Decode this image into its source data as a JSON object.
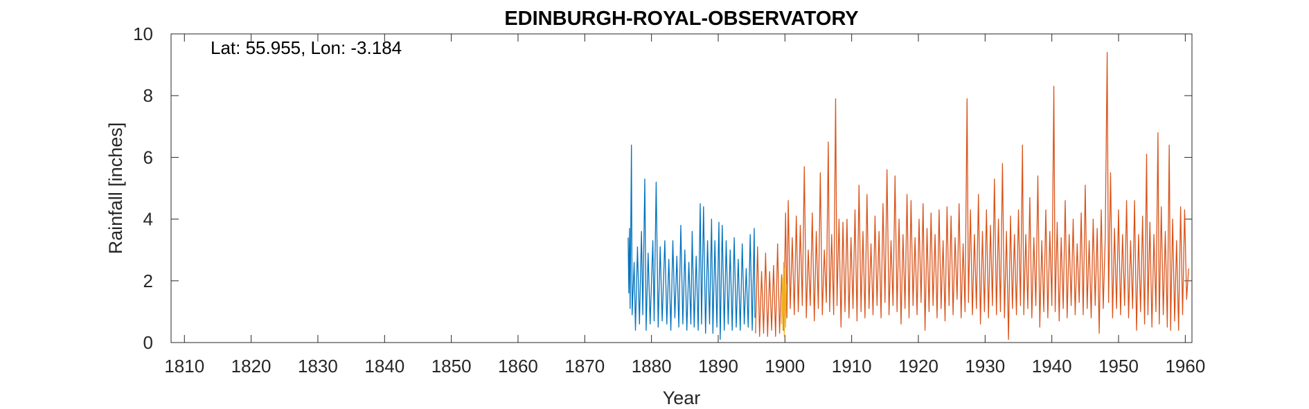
{
  "chart_data": {
    "type": "line",
    "title": "EDINBURGH-ROYAL-OBSERVATORY",
    "xlabel": "Year",
    "ylabel": "Rainfall [inches]",
    "annotation": "Lat: 55.955, Lon: -3.184",
    "xlim": [
      1808,
      1961
    ],
    "ylim": [
      0,
      10
    ],
    "x_ticks": [
      1810,
      1820,
      1830,
      1840,
      1850,
      1860,
      1870,
      1880,
      1890,
      1900,
      1910,
      1920,
      1930,
      1940,
      1950,
      1960
    ],
    "y_ticks": [
      0,
      2,
      4,
      6,
      8,
      10
    ],
    "grid": false,
    "box": true,
    "series": [
      {
        "color": "#0072BD",
        "x_range": [
          1876.5,
          1895.5
        ],
        "points": [
          [
            1876.5,
            3.4
          ],
          [
            1876.6,
            1.6
          ],
          [
            1876.7,
            3.7
          ],
          [
            1876.8,
            1.1
          ],
          [
            1877.0,
            6.4
          ],
          [
            1877.1,
            0.9
          ],
          [
            1877.4,
            2.6
          ],
          [
            1877.6,
            0.4
          ],
          [
            1877.9,
            3.1
          ],
          [
            1878.2,
            0.6
          ],
          [
            1878.5,
            3.6
          ],
          [
            1878.7,
            0.9
          ],
          [
            1879.0,
            5.3
          ],
          [
            1879.2,
            0.4
          ],
          [
            1879.5,
            2.9
          ],
          [
            1879.8,
            0.6
          ],
          [
            1880.2,
            3.3
          ],
          [
            1880.4,
            0.7
          ],
          [
            1880.7,
            5.2
          ],
          [
            1881.0,
            0.5
          ],
          [
            1881.3,
            3.1
          ],
          [
            1881.6,
            0.7
          ],
          [
            1882.0,
            3.3
          ],
          [
            1882.3,
            0.6
          ],
          [
            1882.6,
            2.7
          ],
          [
            1882.9,
            0.4
          ],
          [
            1883.2,
            3.3
          ],
          [
            1883.5,
            0.8
          ],
          [
            1883.8,
            2.8
          ],
          [
            1884.1,
            0.5
          ],
          [
            1884.4,
            3.8
          ],
          [
            1884.7,
            0.6
          ],
          [
            1885.0,
            3.0
          ],
          [
            1885.3,
            0.4
          ],
          [
            1885.6,
            2.6
          ],
          [
            1885.9,
            0.6
          ],
          [
            1886.1,
            3.6
          ],
          [
            1886.4,
            0.5
          ],
          [
            1886.7,
            2.8
          ],
          [
            1887.0,
            0.4
          ],
          [
            1887.3,
            4.5
          ],
          [
            1887.5,
            0.6
          ],
          [
            1887.8,
            4.4
          ],
          [
            1888.1,
            0.3
          ],
          [
            1888.4,
            3.3
          ],
          [
            1888.7,
            0.6
          ],
          [
            1889.0,
            4.0
          ],
          [
            1889.2,
            0.3
          ],
          [
            1889.5,
            3.3
          ],
          [
            1889.8,
            0.5
          ],
          [
            1890.1,
            3.9
          ],
          [
            1890.3,
            0.1
          ],
          [
            1890.6,
            3.8
          ],
          [
            1890.9,
            0.4
          ],
          [
            1891.2,
            3.3
          ],
          [
            1891.5,
            0.6
          ],
          [
            1891.8,
            3.0
          ],
          [
            1892.1,
            0.4
          ],
          [
            1892.4,
            3.4
          ],
          [
            1892.7,
            0.5
          ],
          [
            1893.0,
            2.7
          ],
          [
            1893.3,
            0.4
          ],
          [
            1893.6,
            3.2
          ],
          [
            1893.9,
            0.6
          ],
          [
            1894.2,
            2.4
          ],
          [
            1894.5,
            0.5
          ],
          [
            1894.8,
            3.5
          ],
          [
            1895.1,
            0.4
          ],
          [
            1895.4,
            3.7
          ],
          [
            1895.5,
            0.8
          ]
        ]
      },
      {
        "color": "#D95319",
        "x_range": [
          1895.5,
          1960.5
        ],
        "points": [
          [
            1895.6,
            0.3
          ],
          [
            1895.9,
            3.1
          ],
          [
            1896.2,
            0.2
          ],
          [
            1896.5,
            2.3
          ],
          [
            1896.8,
            0.3
          ],
          [
            1897.1,
            2.9
          ],
          [
            1897.4,
            0.2
          ],
          [
            1897.7,
            2.3
          ],
          [
            1898.0,
            0.4
          ],
          [
            1898.3,
            2.5
          ],
          [
            1898.6,
            0.2
          ],
          [
            1898.9,
            3.2
          ],
          [
            1899.2,
            0.3
          ],
          [
            1899.5,
            2.2
          ],
          [
            1899.8,
            0.4
          ],
          [
            1900.1,
            4.2
          ],
          [
            1900.3,
            0.8
          ],
          [
            1900.5,
            4.6
          ],
          [
            1900.8,
            1.1
          ],
          [
            1901.1,
            3.4
          ],
          [
            1901.4,
            0.9
          ],
          [
            1901.7,
            4.1
          ],
          [
            1902.0,
            1.0
          ],
          [
            1902.3,
            3.8
          ],
          [
            1902.6,
            1.2
          ],
          [
            1902.9,
            5.7
          ],
          [
            1903.2,
            0.8
          ],
          [
            1903.5,
            3.0
          ],
          [
            1903.8,
            1.2
          ],
          [
            1904.1,
            4.2
          ],
          [
            1904.4,
            0.7
          ],
          [
            1904.7,
            3.6
          ],
          [
            1905.0,
            1.1
          ],
          [
            1905.3,
            5.5
          ],
          [
            1905.6,
            0.9
          ],
          [
            1905.9,
            3.0
          ],
          [
            1906.2,
            1.3
          ],
          [
            1906.5,
            6.5
          ],
          [
            1906.7,
            1.0
          ],
          [
            1907.0,
            3.5
          ],
          [
            1907.3,
            0.9
          ],
          [
            1907.6,
            7.9
          ],
          [
            1907.8,
            1.2
          ],
          [
            1908.1,
            4.0
          ],
          [
            1908.4,
            0.5
          ],
          [
            1908.7,
            3.9
          ],
          [
            1909.0,
            1.0
          ],
          [
            1909.3,
            4.0
          ],
          [
            1909.6,
            0.8
          ],
          [
            1909.9,
            3.4
          ],
          [
            1910.2,
            1.1
          ],
          [
            1910.5,
            4.3
          ],
          [
            1910.8,
            0.7
          ],
          [
            1911.1,
            5.1
          ],
          [
            1911.4,
            1.0
          ],
          [
            1911.7,
            3.6
          ],
          [
            1912.0,
            0.8
          ],
          [
            1912.3,
            4.8
          ],
          [
            1912.6,
            1.1
          ],
          [
            1912.9,
            3.2
          ],
          [
            1913.2,
            0.9
          ],
          [
            1913.5,
            4.1
          ],
          [
            1913.8,
            1.2
          ],
          [
            1914.1,
            3.6
          ],
          [
            1914.4,
            0.8
          ],
          [
            1914.7,
            4.5
          ],
          [
            1915.0,
            1.3
          ],
          [
            1915.3,
            5.6
          ],
          [
            1915.6,
            0.9
          ],
          [
            1915.9,
            3.3
          ],
          [
            1916.2,
            1.2
          ],
          [
            1916.5,
            5.4
          ],
          [
            1916.8,
            1.0
          ],
          [
            1917.1,
            4.0
          ],
          [
            1917.4,
            0.6
          ],
          [
            1917.7,
            3.5
          ],
          [
            1918.0,
            1.1
          ],
          [
            1918.3,
            4.8
          ],
          [
            1918.6,
            0.8
          ],
          [
            1918.9,
            4.6
          ],
          [
            1919.2,
            1.2
          ],
          [
            1919.5,
            3.4
          ],
          [
            1919.8,
            0.9
          ],
          [
            1920.1,
            4.0
          ],
          [
            1920.4,
            1.3
          ],
          [
            1920.7,
            4.5
          ],
          [
            1921.0,
            0.4
          ],
          [
            1921.3,
            3.7
          ],
          [
            1921.6,
            1.0
          ],
          [
            1921.9,
            4.2
          ],
          [
            1922.2,
            1.2
          ],
          [
            1922.5,
            3.5
          ],
          [
            1922.8,
            0.8
          ],
          [
            1923.1,
            4.3
          ],
          [
            1923.4,
            1.1
          ],
          [
            1923.7,
            3.3
          ],
          [
            1924.0,
            0.7
          ],
          [
            1924.3,
            4.4
          ],
          [
            1924.6,
            1.2
          ],
          [
            1924.9,
            4.1
          ],
          [
            1925.2,
            0.9
          ],
          [
            1925.5,
            3.4
          ],
          [
            1925.8,
            1.4
          ],
          [
            1926.1,
            4.5
          ],
          [
            1926.4,
            0.8
          ],
          [
            1926.7,
            3.2
          ],
          [
            1927.0,
            1.0
          ],
          [
            1927.3,
            7.9
          ],
          [
            1927.5,
            1.3
          ],
          [
            1927.8,
            4.3
          ],
          [
            1928.1,
            0.9
          ],
          [
            1928.4,
            3.5
          ],
          [
            1928.7,
            1.1
          ],
          [
            1929.0,
            4.8
          ],
          [
            1929.3,
            0.6
          ],
          [
            1929.6,
            3.6
          ],
          [
            1929.9,
            1.0
          ],
          [
            1930.2,
            4.3
          ],
          [
            1930.5,
            0.8
          ],
          [
            1930.8,
            3.8
          ],
          [
            1931.1,
            1.2
          ],
          [
            1931.4,
            5.3
          ],
          [
            1931.7,
            0.9
          ],
          [
            1932.0,
            4.0
          ],
          [
            1932.3,
            1.0
          ],
          [
            1932.6,
            5.8
          ],
          [
            1932.9,
            0.8
          ],
          [
            1933.2,
            3.6
          ],
          [
            1933.5,
            0.1
          ],
          [
            1933.8,
            4.1
          ],
          [
            1934.1,
            1.1
          ],
          [
            1934.4,
            3.5
          ],
          [
            1934.7,
            0.9
          ],
          [
            1935.0,
            4.3
          ],
          [
            1935.3,
            1.2
          ],
          [
            1935.6,
            6.4
          ],
          [
            1935.8,
            0.9
          ],
          [
            1936.1,
            3.5
          ],
          [
            1936.4,
            1.1
          ],
          [
            1936.7,
            4.7
          ],
          [
            1937.0,
            0.8
          ],
          [
            1937.3,
            3.4
          ],
          [
            1937.6,
            1.2
          ],
          [
            1937.9,
            5.4
          ],
          [
            1938.2,
            0.5
          ],
          [
            1938.5,
            3.3
          ],
          [
            1938.8,
            1.0
          ],
          [
            1939.1,
            4.3
          ],
          [
            1939.4,
            0.8
          ],
          [
            1939.7,
            3.6
          ],
          [
            1940.0,
            1.2
          ],
          [
            1940.3,
            8.3
          ],
          [
            1940.5,
            1.0
          ],
          [
            1940.8,
            3.9
          ],
          [
            1941.1,
            0.7
          ],
          [
            1941.4,
            3.4
          ],
          [
            1941.7,
            1.1
          ],
          [
            1942.0,
            4.6
          ],
          [
            1942.3,
            0.8
          ],
          [
            1942.6,
            3.5
          ],
          [
            1942.9,
            1.2
          ],
          [
            1943.2,
            4.0
          ],
          [
            1943.5,
            0.9
          ],
          [
            1943.8,
            3.2
          ],
          [
            1944.1,
            1.3
          ],
          [
            1944.4,
            4.2
          ],
          [
            1944.7,
            0.9
          ],
          [
            1945.0,
            5.1
          ],
          [
            1945.3,
            1.1
          ],
          [
            1945.6,
            3.3
          ],
          [
            1945.9,
            0.8
          ],
          [
            1946.2,
            4.0
          ],
          [
            1946.5,
            1.2
          ],
          [
            1946.8,
            3.7
          ],
          [
            1947.1,
            0.3
          ],
          [
            1947.4,
            4.3
          ],
          [
            1947.7,
            1.1
          ],
          [
            1948.0,
            3.4
          ],
          [
            1948.3,
            9.4
          ],
          [
            1948.5,
            1.3
          ],
          [
            1948.8,
            5.5
          ],
          [
            1949.1,
            0.8
          ],
          [
            1949.4,
            3.7
          ],
          [
            1949.7,
            1.1
          ],
          [
            1950.0,
            4.3
          ],
          [
            1950.3,
            0.9
          ],
          [
            1950.6,
            3.5
          ],
          [
            1950.9,
            1.2
          ],
          [
            1951.2,
            4.6
          ],
          [
            1951.5,
            0.8
          ],
          [
            1951.8,
            3.3
          ],
          [
            1952.1,
            1.1
          ],
          [
            1952.4,
            4.6
          ],
          [
            1952.7,
            0.4
          ],
          [
            1953.0,
            3.5
          ],
          [
            1953.3,
            1.0
          ],
          [
            1953.6,
            4.1
          ],
          [
            1953.9,
            0.6
          ],
          [
            1954.2,
            6.1
          ],
          [
            1954.4,
            0.9
          ],
          [
            1954.7,
            3.9
          ],
          [
            1955.0,
            0.5
          ],
          [
            1955.3,
            3.5
          ],
          [
            1955.6,
            1.0
          ],
          [
            1955.9,
            6.8
          ],
          [
            1956.1,
            0.6
          ],
          [
            1956.4,
            4.4
          ],
          [
            1956.7,
            0.9
          ],
          [
            1957.0,
            3.6
          ],
          [
            1957.3,
            0.5
          ],
          [
            1957.6,
            6.4
          ],
          [
            1957.8,
            0.4
          ],
          [
            1958.1,
            4.0
          ],
          [
            1958.4,
            0.7
          ],
          [
            1958.7,
            3.3
          ],
          [
            1959.0,
            0.4
          ],
          [
            1959.3,
            4.4
          ],
          [
            1959.6,
            0.9
          ],
          [
            1959.9,
            4.3
          ],
          [
            1960.2,
            1.4
          ],
          [
            1960.5,
            2.4
          ]
        ]
      },
      {
        "color": "#EDB120",
        "x_range": [
          1899.5,
          1900.2
        ],
        "points": [
          [
            1899.5,
            0.6
          ],
          [
            1899.6,
            2.1
          ],
          [
            1899.7,
            0.4
          ],
          [
            1899.8,
            2.6
          ],
          [
            1899.9,
            0.2
          ],
          [
            1900.0,
            2.4
          ],
          [
            1900.1,
            0.5
          ],
          [
            1900.2,
            1.9
          ]
        ]
      }
    ]
  }
}
